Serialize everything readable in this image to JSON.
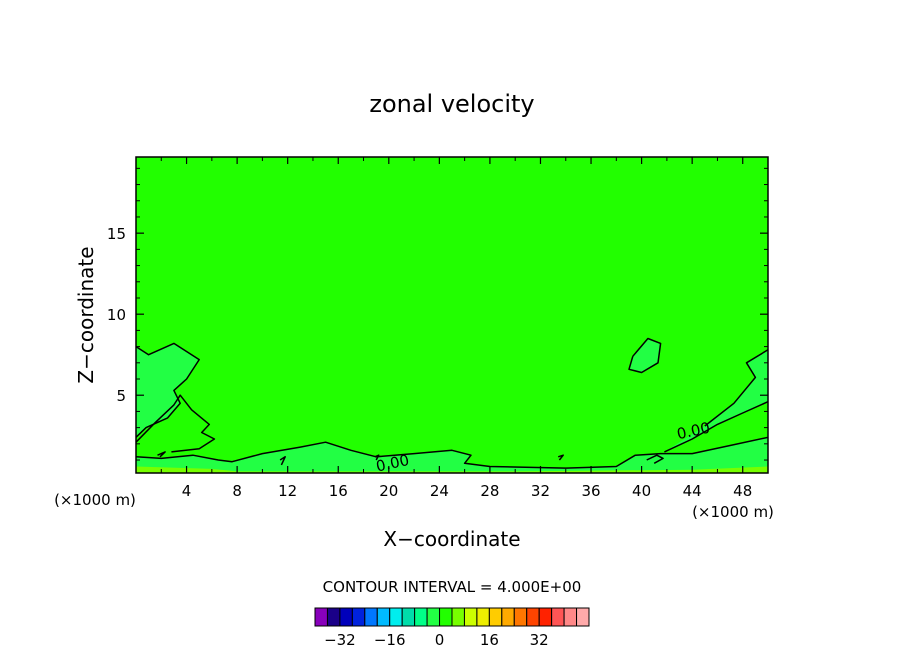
{
  "chart_data": {
    "type": "contour",
    "title": "zonal velocity",
    "xlabel": "X−coordinate",
    "ylabel": "Z−coordinate",
    "x_unit_left": "(×1000 m)",
    "x_unit_right": "(×1000 m)",
    "xlim": [
      0,
      50
    ],
    "ylim": [
      0.2,
      19.7
    ],
    "x_ticks": [
      4,
      8,
      12,
      16,
      20,
      24,
      28,
      32,
      36,
      40,
      44,
      48
    ],
    "y_ticks": [
      5,
      10,
      15
    ],
    "background_fill": "#22ff00",
    "contour_labels": [
      {
        "text": "0.00",
        "x": 20.3,
        "y": 0.8
      },
      {
        "text": "0.00",
        "x": 44.1,
        "y": 2.8
      }
    ],
    "regions": [
      {
        "name": "left positive lobe",
        "fill": "#22ff44",
        "points": [
          [
            0,
            8.0
          ],
          [
            1,
            7.5
          ],
          [
            3,
            8.2
          ],
          [
            5,
            7.2
          ],
          [
            4,
            6.0
          ],
          [
            3,
            5.3
          ],
          [
            3.5,
            4.5
          ],
          [
            2.5,
            3.6
          ],
          [
            0.8,
            3.0
          ],
          [
            0,
            2.4
          ]
        ]
      },
      {
        "name": "surface positive layer",
        "fill": "#22ff44",
        "points": [
          [
            0,
            1.2
          ],
          [
            2,
            1.1
          ],
          [
            4.5,
            1.3
          ],
          [
            6.5,
            1.0
          ],
          [
            7.6,
            0.9
          ],
          [
            10,
            1.4
          ],
          [
            13,
            1.8
          ],
          [
            15,
            2.1
          ],
          [
            17,
            1.6
          ],
          [
            19,
            1.2
          ],
          [
            22,
            1.4
          ],
          [
            25,
            1.6
          ],
          [
            26.5,
            1.3
          ],
          [
            26,
            0.8
          ],
          [
            28,
            0.6
          ],
          [
            34,
            0.5
          ],
          [
            38,
            0.6
          ],
          [
            39.5,
            1.3
          ],
          [
            41.5,
            1.4
          ],
          [
            44,
            1.4
          ],
          [
            47,
            1.9
          ],
          [
            50,
            2.4
          ],
          [
            50,
            0.2
          ],
          [
            0,
            0.2
          ]
        ]
      },
      {
        "name": "right positive lobe",
        "fill": "#22ff44",
        "points": [
          [
            41.8,
            1.5
          ],
          [
            44,
            2.3
          ],
          [
            46,
            3.2
          ],
          [
            48,
            3.9
          ],
          [
            50,
            4.6
          ],
          [
            50,
            7.8
          ],
          [
            48.3,
            7.0
          ],
          [
            49,
            6.1
          ],
          [
            47.3,
            4.5
          ],
          [
            45,
            3.1
          ]
        ]
      },
      {
        "name": "upper right closed contour",
        "fill": "#22ff44",
        "points": [
          [
            39.3,
            7.4
          ],
          [
            40.5,
            8.5
          ],
          [
            41.5,
            8.2
          ],
          [
            41.3,
            7.0
          ],
          [
            40,
            6.4
          ],
          [
            39,
            6.6
          ]
        ]
      },
      {
        "name": "surface strip",
        "fill": "#77ff00",
        "points": [
          [
            0,
            0.6
          ],
          [
            6,
            0.45
          ],
          [
            8,
            0.3
          ],
          [
            30,
            0.3
          ],
          [
            44,
            0.4
          ],
          [
            50,
            0.6
          ],
          [
            50,
            0.2
          ],
          [
            0,
            0.2
          ]
        ]
      }
    ],
    "contour_lines": [
      [
        [
          0,
          8.0
        ],
        [
          1,
          7.5
        ],
        [
          3,
          8.2
        ],
        [
          5,
          7.2
        ],
        [
          4,
          6.0
        ],
        [
          3,
          5.3
        ],
        [
          3.5,
          4.5
        ],
        [
          2.5,
          3.6
        ],
        [
          0.8,
          3.0
        ],
        [
          0,
          2.4
        ]
      ],
      [
        [
          0,
          2.1
        ],
        [
          1.5,
          3.3
        ],
        [
          3,
          4.4
        ],
        [
          3.5,
          5.0
        ],
        [
          4.4,
          4.1
        ],
        [
          5.8,
          3.2
        ],
        [
          5.2,
          2.7
        ],
        [
          6.2,
          2.3
        ],
        [
          5.0,
          1.7
        ],
        [
          2.8,
          1.5
        ]
      ],
      [
        [
          0,
          1.2
        ],
        [
          2,
          1.1
        ],
        [
          4.5,
          1.3
        ],
        [
          6.5,
          1.0
        ],
        [
          7.6,
          0.9
        ],
        [
          10,
          1.4
        ],
        [
          13,
          1.8
        ],
        [
          15,
          2.1
        ],
        [
          17,
          1.6
        ],
        [
          19,
          1.2
        ],
        [
          22,
          1.4
        ],
        [
          25,
          1.6
        ],
        [
          26.5,
          1.3
        ],
        [
          26,
          0.8
        ],
        [
          28,
          0.6
        ],
        [
          34,
          0.5
        ],
        [
          38,
          0.6
        ],
        [
          39.5,
          1.3
        ],
        [
          41.5,
          1.4
        ],
        [
          44,
          1.4
        ],
        [
          47,
          1.9
        ],
        [
          50,
          2.4
        ]
      ],
      [
        [
          41.8,
          1.5
        ],
        [
          44,
          2.3
        ],
        [
          46,
          3.2
        ],
        [
          48,
          3.9
        ],
        [
          50,
          4.6
        ]
      ],
      [
        [
          50,
          7.8
        ],
        [
          48.3,
          7.0
        ],
        [
          49,
          6.1
        ],
        [
          47.3,
          4.5
        ],
        [
          45,
          3.1
        ]
      ],
      [
        [
          39.3,
          7.4
        ],
        [
          40.5,
          8.5
        ],
        [
          41.5,
          8.2
        ],
        [
          41.3,
          7.0
        ],
        [
          40,
          6.4
        ],
        [
          39,
          6.6
        ],
        [
          39.3,
          7.4
        ]
      ],
      [
        [
          1.7,
          1.3
        ],
        [
          2.3,
          1.5
        ],
        [
          1.9,
          1.2
        ]
      ],
      [
        [
          11.4,
          1.0
        ],
        [
          11.8,
          1.2
        ],
        [
          11.5,
          0.7
        ]
      ],
      [
        [
          18.9,
          1.2
        ],
        [
          19.2,
          1.3
        ],
        [
          19.0,
          1.0
        ]
      ],
      [
        [
          33.4,
          1.2
        ],
        [
          33.8,
          1.3
        ],
        [
          33.5,
          1.0
        ]
      ],
      [
        [
          40.4,
          1.0
        ],
        [
          41.2,
          1.3
        ],
        [
          41.7,
          1.1
        ],
        [
          41.0,
          0.8
        ]
      ]
    ],
    "colorbar": {
      "caption": "CONTOUR INTERVAL = 4.000E+00",
      "colors": [
        "#8800bb",
        "#1a0088",
        "#0000bb",
        "#0022dd",
        "#0077ff",
        "#00bbff",
        "#00eeee",
        "#00ddaa",
        "#00ff88",
        "#22ff44",
        "#22ff00",
        "#77ff00",
        "#ccff00",
        "#eeee00",
        "#ffcc00",
        "#ffaa00",
        "#ff7700",
        "#ff4400",
        "#ff2200",
        "#ff5555",
        "#ff8888",
        "#ffaaaa"
      ],
      "tick_labels": [
        "−32",
        "−16",
        "0",
        "16",
        "32"
      ],
      "tick_values": [
        -32,
        -16,
        0,
        16,
        32
      ],
      "range": [
        -40,
        48
      ]
    }
  }
}
